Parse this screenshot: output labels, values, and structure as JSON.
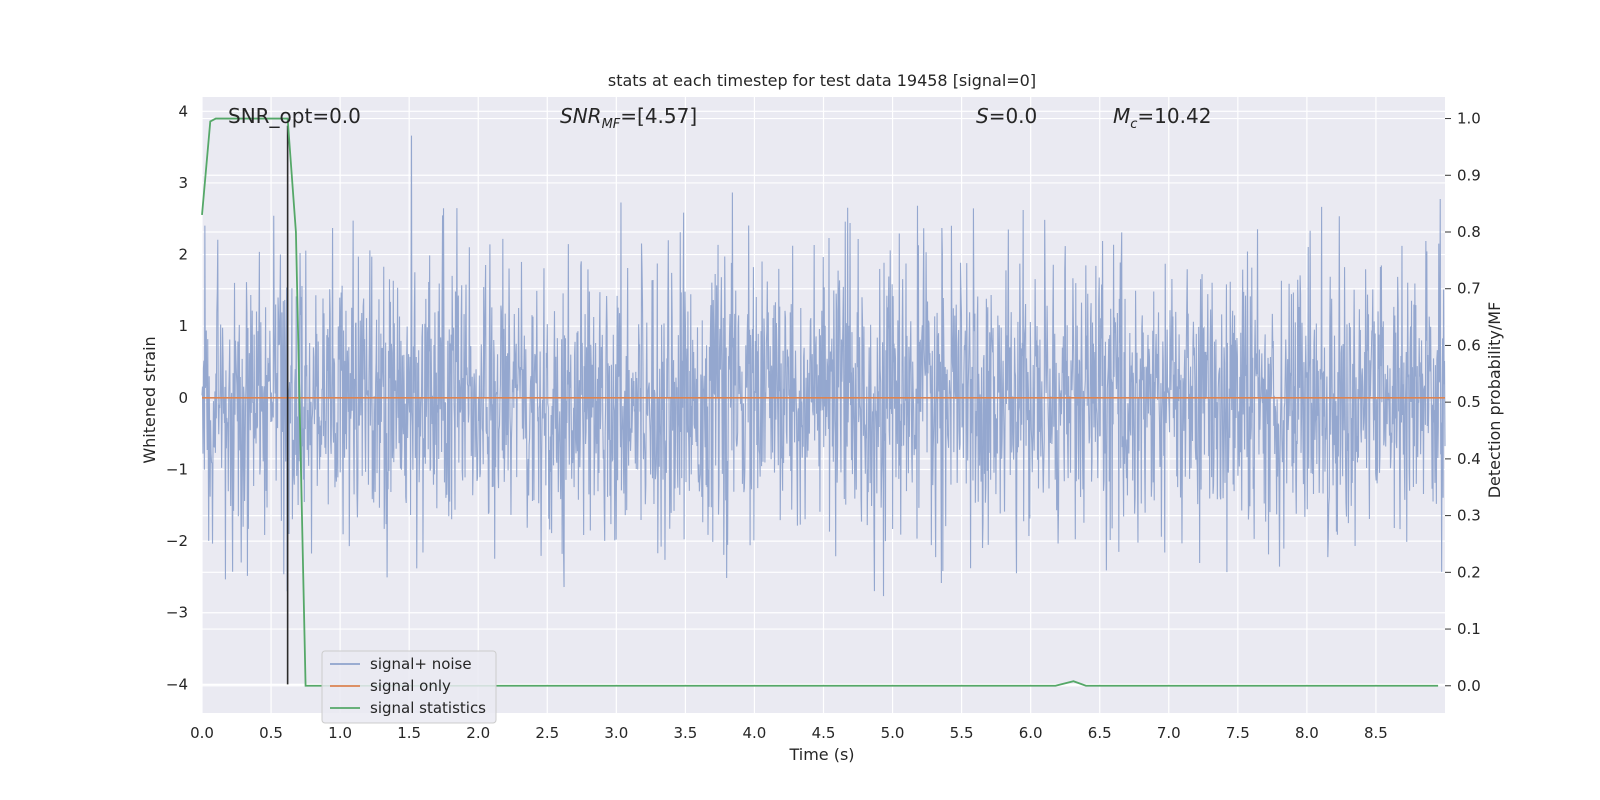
{
  "chart_data": {
    "type": "line",
    "title": "stats at each timestep for test data 19458 [signal=0]",
    "xlabel": "Time (s)",
    "ylabel_left": "Whitened strain",
    "ylabel_right": "Detection probability/MF",
    "xlim": [
      0.0,
      9.0
    ],
    "ylim_left": [
      -4.4,
      4.2
    ],
    "ylim_right": [
      -0.048,
      1.038
    ],
    "xticks": [
      "0.0",
      "0.5",
      "1.0",
      "1.5",
      "2.0",
      "2.5",
      "3.0",
      "3.5",
      "4.0",
      "4.5",
      "5.0",
      "5.5",
      "6.0",
      "6.5",
      "7.0",
      "7.5",
      "8.0",
      "8.5"
    ],
    "yticks_left": [
      "4",
      "3",
      "2",
      "1",
      "0",
      "−1",
      "−2",
      "−3",
      "−4"
    ],
    "yticks_right": [
      "1.0",
      "0.9",
      "0.8",
      "0.7",
      "0.6",
      "0.5",
      "0.4",
      "0.3",
      "0.2",
      "0.1",
      "0.0"
    ],
    "grid": true,
    "legend_position": "lower-left",
    "annotations": {
      "snr_opt": "SNR_opt=0.0",
      "snr_mf_main": "SNR",
      "snr_mf_sub": "MF",
      "snr_mf_value": "=[4.57]",
      "s_main": "S",
      "s_value": "=0.0",
      "mc_main": "M",
      "mc_sub": "c",
      "mc_value": "=10.42"
    },
    "series": [
      {
        "name": "signal+ noise",
        "color": "#8fa3cc",
        "axis": "left",
        "description": "Gaussian-like whitened noise, amplitude mostly within ±2.5"
      },
      {
        "name": "signal only",
        "color": "#dd8452",
        "axis": "left",
        "x": [
          0.0,
          9.0
        ],
        "y": [
          0.0,
          0.0
        ]
      },
      {
        "name": "signal statistics",
        "color": "#55a868",
        "axis": "right",
        "x": [
          0.0,
          0.06,
          0.1,
          0.2,
          0.4,
          0.6,
          0.62,
          0.68,
          0.75,
          0.8,
          1.0,
          2.0,
          4.0,
          6.0,
          6.18,
          6.31,
          6.4,
          7.0,
          8.0,
          8.95
        ],
        "y": [
          0.83,
          0.995,
          1.0,
          1.0,
          1.0,
          1.0,
          1.0,
          0.8,
          0.0,
          0.0,
          0.0,
          0.0,
          0.0,
          0.0,
          0.0,
          0.008,
          0.0,
          0.0,
          0.0,
          0.0
        ]
      }
    ],
    "vline": {
      "x": 0.62,
      "y_from": -4.0,
      "y_to": 3.8,
      "color": "#2a2a2a"
    }
  }
}
